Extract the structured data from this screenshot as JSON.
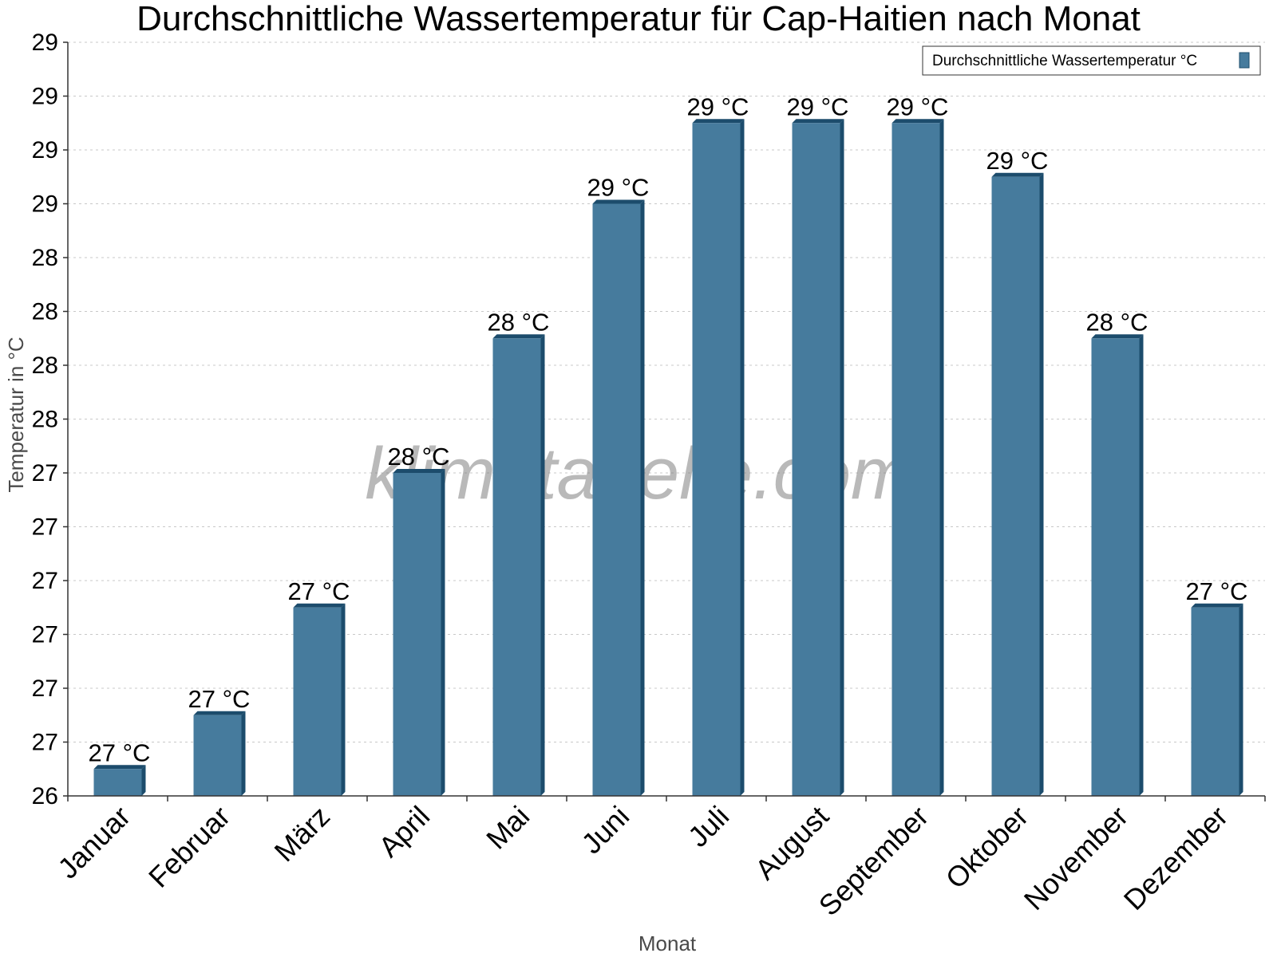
{
  "chart_data": {
    "type": "bar",
    "title": "Durchschnittliche Wassertemperatur für Cap-Haitien nach Monat",
    "xlabel": "Monat",
    "ylabel": "Temperatur in °C",
    "categories": [
      "Januar",
      "Februar",
      "März",
      "April",
      "Mai",
      "Juni",
      "Juli",
      "August",
      "September",
      "Oktober",
      "November",
      "Dezember"
    ],
    "series": [
      {
        "name": "Durchschnittliche Wassertemperatur °C",
        "values": [
          26.5,
          26.7,
          27.1,
          27.6,
          28.1,
          28.6,
          28.9,
          28.9,
          28.9,
          28.7,
          28.1,
          27.1
        ],
        "labels": [
          "27 °C",
          "27 °C",
          "27 °C",
          "28 °C",
          "28 °C",
          "29 °C",
          "29 °C",
          "29 °C",
          "29 °C",
          "29 °C",
          "28 °C",
          "27 °C"
        ],
        "color": "#467b9d",
        "edge_color": "#1c4c6c"
      }
    ],
    "ylim": [
      26.4,
      29.2
    ],
    "yticks": [
      26.4,
      26.6,
      26.8,
      27.0,
      27.2,
      27.4,
      27.6,
      27.8,
      28.0,
      28.2,
      28.4,
      28.6,
      28.8,
      29.0,
      29.2
    ],
    "ytick_labels": [
      "26",
      "27",
      "27",
      "27",
      "27",
      "27",
      "27",
      "28",
      "28",
      "28",
      "28",
      "29",
      "29",
      "29",
      "29"
    ],
    "grid": true,
    "legend_position": "top-right",
    "watermark": "klimatabelle.com"
  }
}
